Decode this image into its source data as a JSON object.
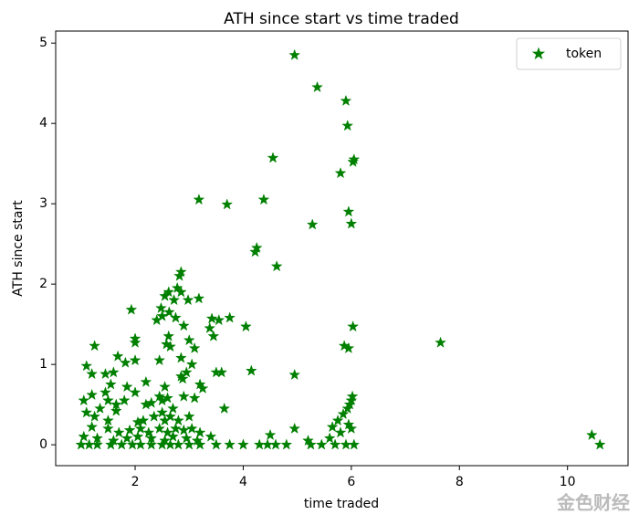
{
  "chart_data": {
    "type": "scatter",
    "title": "ATH since start vs time traded",
    "xlabel": "time traded",
    "ylabel": "ATH since start",
    "xlim": [
      0.53,
      11.12
    ],
    "ylim": [
      -0.26,
      5.15
    ],
    "xticks": [
      2,
      4,
      6,
      8,
      10
    ],
    "yticks": [
      0,
      1,
      2,
      3,
      4,
      5
    ],
    "legend": "upper right",
    "marker": "star",
    "series": [
      {
        "name": "token",
        "color": "#008000",
        "x": [
          4.95,
          5.37,
          5.9,
          5.93,
          4.55,
          6.05,
          6.03,
          5.8,
          3.18,
          4.38,
          3.7,
          5.95,
          5.28,
          6.0,
          4.25,
          4.22,
          4.62,
          2.85,
          2.82,
          2.78,
          2.62,
          2.85,
          2.55,
          2.72,
          2.98,
          3.18,
          2.48,
          1.93,
          2.63,
          2.5,
          2.4,
          3.75,
          3.42,
          3.55,
          2.75,
          2.9,
          3.38,
          3.45,
          4.05,
          6.03,
          2.0,
          2.0,
          2.62,
          2.65,
          2.58,
          3.0,
          3.1,
          1.25,
          5.87,
          5.95,
          7.65,
          1.68,
          2.0,
          1.82,
          2.45,
          2.85,
          3.05,
          1.1,
          1.45,
          1.6,
          1.2,
          4.15,
          3.5,
          3.6,
          4.95,
          2.85,
          2.95,
          2.2,
          2.88,
          3.2,
          1.55,
          1.85,
          2.55,
          3.25,
          1.45,
          1.2,
          1.05,
          1.5,
          2.0,
          2.2,
          2.45,
          2.5,
          2.6,
          2.9,
          3.1,
          1.65,
          1.8,
          2.3,
          2.7,
          3.65,
          6.02,
          6.0,
          5.97,
          5.93,
          1.1,
          1.25,
          1.35,
          1.5,
          1.65,
          2.05,
          2.15,
          2.35,
          2.5,
          2.55,
          2.65,
          2.8,
          3.0,
          5.85,
          5.75,
          5.95,
          1.2,
          1.5,
          1.7,
          1.9,
          2.1,
          2.25,
          2.45,
          2.6,
          2.75,
          2.9,
          3.05,
          3.2,
          5.65,
          5.8,
          6.0,
          4.95,
          4.5,
          10.45,
          1.05,
          1.3,
          1.6,
          1.85,
          2.05,
          2.3,
          2.55,
          2.7,
          2.95,
          3.15,
          3.4,
          5.2,
          5.6,
          1.0,
          1.15,
          1.3,
          1.55,
          1.75,
          1.95,
          2.1,
          2.3,
          2.5,
          2.65,
          2.8,
          3.0,
          3.2,
          3.5,
          3.75,
          4.0,
          4.3,
          4.45,
          4.6,
          4.8,
          5.25,
          5.45,
          5.7,
          5.9,
          6.05,
          10.6
        ],
        "values": [
          4.85,
          4.45,
          4.28,
          3.97,
          3.57,
          3.55,
          3.52,
          3.38,
          3.05,
          3.05,
          2.99,
          2.9,
          2.74,
          2.75,
          2.45,
          2.4,
          2.22,
          2.15,
          2.1,
          1.95,
          1.9,
          1.9,
          1.85,
          1.8,
          1.8,
          1.82,
          1.7,
          1.68,
          1.65,
          1.6,
          1.55,
          1.58,
          1.57,
          1.55,
          1.58,
          1.48,
          1.45,
          1.35,
          1.47,
          1.47,
          1.32,
          1.27,
          1.35,
          1.22,
          1.25,
          1.3,
          1.2,
          1.23,
          1.23,
          1.2,
          1.27,
          1.1,
          1.05,
          1.02,
          1.05,
          1.08,
          1.0,
          0.98,
          0.88,
          0.9,
          0.88,
          0.92,
          0.9,
          0.9,
          0.87,
          0.85,
          0.9,
          0.78,
          0.82,
          0.75,
          0.75,
          0.72,
          0.72,
          0.7,
          0.65,
          0.62,
          0.55,
          0.55,
          0.65,
          0.5,
          0.6,
          0.55,
          0.58,
          0.6,
          0.58,
          0.5,
          0.55,
          0.52,
          0.45,
          0.45,
          0.6,
          0.55,
          0.5,
          0.45,
          0.4,
          0.35,
          0.45,
          0.3,
          0.42,
          0.28,
          0.3,
          0.35,
          0.4,
          0.3,
          0.35,
          0.3,
          0.35,
          0.38,
          0.3,
          0.25,
          0.22,
          0.2,
          0.15,
          0.18,
          0.2,
          0.15,
          0.2,
          0.15,
          0.2,
          0.18,
          0.2,
          0.15,
          0.22,
          0.15,
          0.2,
          0.2,
          0.12,
          0.12,
          0.1,
          0.08,
          0.05,
          0.08,
          0.1,
          0.08,
          0.05,
          0.1,
          0.08,
          0.05,
          0.1,
          0.05,
          0.08,
          0,
          0,
          0,
          0,
          0,
          0,
          0,
          0,
          0,
          0,
          0,
          0,
          0,
          0,
          0,
          0,
          0,
          0,
          0,
          0,
          0,
          0,
          0,
          0,
          0,
          0
        ]
      }
    ]
  },
  "watermark": "金色财经"
}
